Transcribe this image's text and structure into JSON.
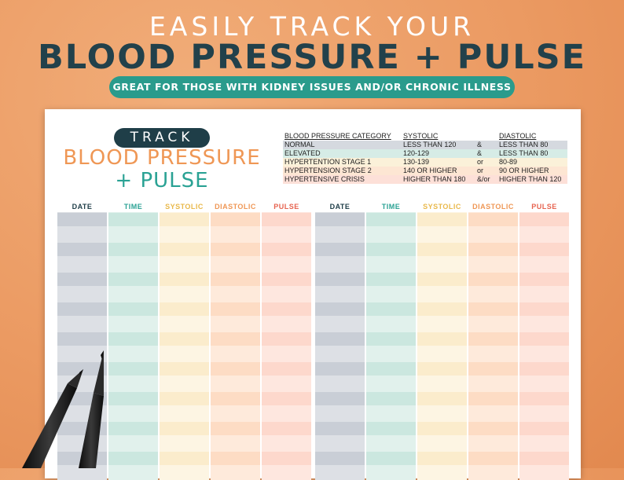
{
  "header": {
    "line1": "EASILY TRACK YOUR",
    "line2": "BLOOD PRESSURE + PULSE",
    "subtitle": "GREAT FOR THOSE WITH KIDNEY ISSUES AND/OR CHRONIC ILLNESS"
  },
  "sheet": {
    "track_label": "TRACK",
    "title_line1": "BLOOD PRESSURE",
    "title_line2": "+ PULSE",
    "category_table": {
      "headers": [
        "BLOOD PRESSURE CATEGORY",
        "SYSTOLIC",
        "",
        "DIASTOLIC"
      ],
      "rows": [
        {
          "category": "NORMAL",
          "systolic": "LESS THAN 120",
          "join": "&",
          "diastolic": "LESS THAN 80",
          "color": "#d5d9df"
        },
        {
          "category": "ELEVATED",
          "systolic": "120-129",
          "join": "&",
          "diastolic": "LESS THAN 80",
          "color": "#d6ece6"
        },
        {
          "category": "HYPERTENTION STAGE 1",
          "systolic": "130-139",
          "join": "or",
          "diastolic": "80-89",
          "color": "#fbf1d9"
        },
        {
          "category": "HYPERTENSION STAGE 2",
          "systolic": "140 OR HIGHER",
          "join": "or",
          "diastolic": "90 OR HIGHER",
          "color": "#fde6d3"
        },
        {
          "category": "HYPERTENSIVE CRISIS",
          "systolic": "HIGHER THAN 180",
          "join": "&/or",
          "diastolic": "HIGHER THAN 120",
          "color": "#fde0d8"
        }
      ]
    },
    "log_columns": [
      {
        "label": "DATE",
        "color": "#1f3e48",
        "fill_a": "#c9ced6",
        "fill_b": "#dde0e5"
      },
      {
        "label": "TIME",
        "color": "#2aa294",
        "fill_a": "#cbe7df",
        "fill_b": "#e1f1ec"
      },
      {
        "label": "SYSTOLIC",
        "color": "#e9b84a",
        "fill_a": "#fbeccc",
        "fill_b": "#fdf5e3"
      },
      {
        "label": "DIASTOLIC",
        "color": "#ef9755",
        "fill_a": "#fddcc4",
        "fill_b": "#feeadb"
      },
      {
        "label": "PULSE",
        "color": "#e7634f",
        "fill_a": "#fdd8cc",
        "fill_b": "#fee7df"
      },
      {
        "label": "DATE",
        "color": "#1f3e48",
        "fill_a": "#c9ced6",
        "fill_b": "#dde0e5"
      },
      {
        "label": "TIME",
        "color": "#2aa294",
        "fill_a": "#cbe7df",
        "fill_b": "#e1f1ec"
      },
      {
        "label": "SYSTOLIC",
        "color": "#e9b84a",
        "fill_a": "#fbeccc",
        "fill_b": "#fdf5e3"
      },
      {
        "label": "DIASTOLIC",
        "color": "#ef9755",
        "fill_a": "#fddcc4",
        "fill_b": "#feeadb"
      },
      {
        "label": "PULSE",
        "color": "#e7634f",
        "fill_a": "#fdd8cc",
        "fill_b": "#fee7df"
      }
    ]
  }
}
